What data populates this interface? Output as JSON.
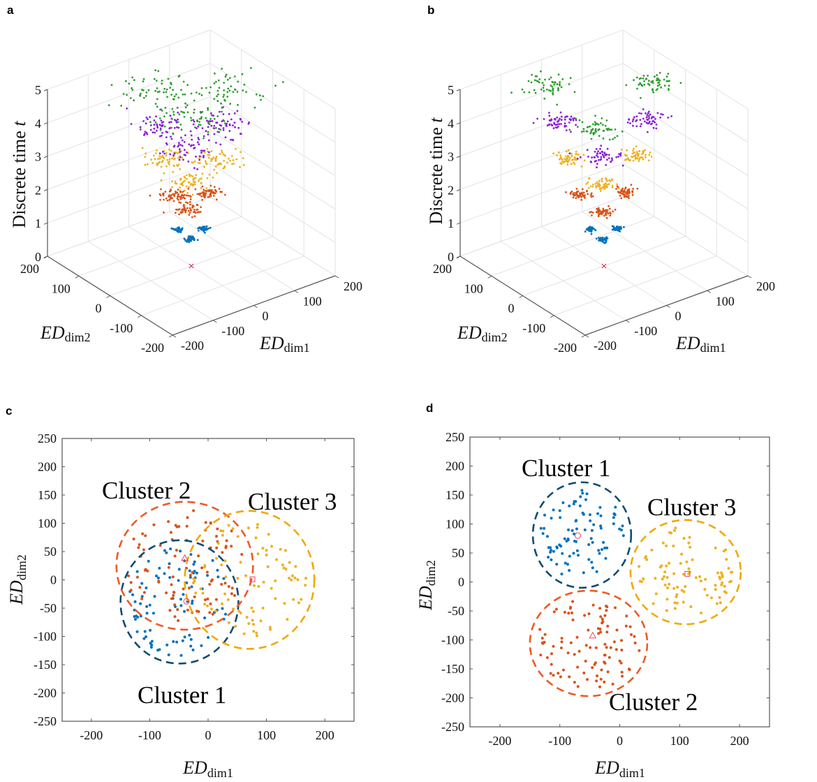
{
  "panel_labels": [
    "a",
    "b",
    "c",
    "d"
  ],
  "chart_data": [
    {
      "panel": "a",
      "type": "scatter3d",
      "xlabel": "ED",
      "xlabel_sub": "dim1",
      "ylabel": "ED",
      "ylabel_sub": "dim2",
      "zlabel": "Discrete time ",
      "zlabel_var": "t",
      "xlim": [
        -200,
        200
      ],
      "ylim": [
        -200,
        200
      ],
      "zlim": [
        0,
        5
      ],
      "xticks": [
        -200,
        -100,
        0,
        100,
        200
      ],
      "yticks": [
        -200,
        -100,
        0,
        100,
        200
      ],
      "zticks": [
        0,
        1,
        2,
        3,
        4,
        5
      ],
      "grid": true,
      "origin_marker": {
        "x": 0,
        "y": 0,
        "t": 0,
        "symbol": "x",
        "color": "#D7263D"
      },
      "layers": [
        {
          "t": 1,
          "color": "#0072BD",
          "spread": 5,
          "points_per_cluster": 40,
          "centers": [
            [
              -13,
              25
            ],
            [
              28,
              -2
            ],
            [
              -19,
              -21
            ]
          ]
        },
        {
          "t": 2,
          "color": "#D95319",
          "spread": 14,
          "points_per_cluster": 60,
          "centers": [
            [
              -18,
              36
            ],
            [
              40,
              -2
            ],
            [
              -27,
              -30
            ]
          ]
        },
        {
          "t": 3,
          "color": "#EDB120",
          "spread": 22,
          "points_per_cluster": 60,
          "centers": [
            [
              -25,
              49
            ],
            [
              55,
              -3
            ],
            [
              -37,
              -41
            ]
          ]
        },
        {
          "t": 4,
          "color": "#8A1FD6",
          "spread": 30,
          "points_per_cluster": 60,
          "centers": [
            [
              -29,
              58
            ],
            [
              65,
              -4
            ],
            [
              -44,
              -48
            ]
          ]
        },
        {
          "t": 5,
          "color": "#2E9E2E",
          "spread": 40,
          "points_per_cluster": 60,
          "centers": [
            [
              -36,
              71
            ],
            [
              80,
              -5
            ],
            [
              -54,
              -59
            ]
          ]
        }
      ]
    },
    {
      "panel": "b",
      "type": "scatter3d",
      "xlabel": "ED",
      "xlabel_sub": "dim1",
      "ylabel": "ED",
      "ylabel_sub": "dim2",
      "zlabel": "Discrete time ",
      "zlabel_var": "t",
      "xlim": [
        -200,
        200
      ],
      "ylim": [
        -200,
        200
      ],
      "zlim": [
        0,
        5
      ],
      "xticks": [
        -200,
        -100,
        0,
        100,
        200
      ],
      "yticks": [
        -200,
        -100,
        0,
        100,
        200
      ],
      "zticks": [
        0,
        1,
        2,
        3,
        4,
        5
      ],
      "grid": true,
      "origin_marker": {
        "x": 0,
        "y": 0,
        "t": 0,
        "symbol": "x",
        "color": "#D7263D"
      },
      "layers": [
        {
          "t": 1,
          "color": "#0072BD",
          "spread": 5,
          "points_per_cluster": 40,
          "centers": [
            [
              -14,
              27
            ],
            [
              30,
              -2
            ],
            [
              -20,
              -22
            ]
          ]
        },
        {
          "t": 2,
          "color": "#D95319",
          "spread": 10,
          "points_per_cluster": 55,
          "centers": [
            [
              -23,
              46
            ],
            [
              52,
              -3
            ],
            [
              -35,
              -38
            ]
          ]
        },
        {
          "t": 3,
          "color": "#EDB120",
          "spread": 14,
          "points_per_cluster": 55,
          "centers": [
            [
              -34,
              67
            ],
            [
              75,
              -5
            ],
            [
              -50,
              -56
            ]
          ]
        },
        {
          "t": 4,
          "color": "#8A1FD6",
          "spread": 18,
          "points_per_cluster": 55,
          "centers": [
            [
              -44,
              87
            ],
            [
              98,
              -6
            ],
            [
              -66,
              -73
            ]
          ]
        },
        {
          "t": 5,
          "color": "#2E9E2E",
          "spread": 22,
          "points_per_cluster": 55,
          "centers": [
            [
              -54,
              107
            ],
            [
              120,
              -7
            ],
            [
              -80,
              -89
            ]
          ]
        }
      ]
    },
    {
      "panel": "c",
      "type": "scatter",
      "xlabel": "ED",
      "xlabel_sub": "dim1",
      "ylabel": "ED",
      "ylabel_sub": "dim2",
      "xlim": [
        -250,
        250
      ],
      "ylim": [
        -250,
        250
      ],
      "xticks": [
        -200,
        -100,
        0,
        100,
        200
      ],
      "yticks": [
        -250,
        -200,
        -150,
        -100,
        -50,
        0,
        50,
        100,
        150,
        200,
        250
      ],
      "clusters": [
        {
          "label": "Cluster 1",
          "color": "#0072BD",
          "ellipse_color": "#0E4C70",
          "ellipse": {
            "cx": -49,
            "cy": -39,
            "rx": 101,
            "ry": 109
          },
          "centroid": {
            "x": -37,
            "y": -38,
            "symbol": "circle"
          },
          "points": 90
        },
        {
          "label": "Cluster 2",
          "color": "#D95319",
          "ellipse_color": "#EE5A24",
          "ellipse": {
            "cx": -40,
            "cy": 25,
            "rx": 117,
            "ry": 113
          },
          "centroid": {
            "x": -40,
            "y": 38,
            "symbol": "triangle"
          },
          "points": 90
        },
        {
          "label": "Cluster 3",
          "color": "#EDB120",
          "ellipse_color": "#F0A800",
          "ellipse": {
            "cx": 71,
            "cy": 0,
            "rx": 111,
            "ry": 122
          },
          "centroid": {
            "x": 76,
            "y": 1,
            "symbol": "square"
          },
          "points": 85
        }
      ],
      "centroid_color": "#F0405A"
    },
    {
      "panel": "d",
      "type": "scatter",
      "xlabel": "ED",
      "xlabel_sub": "dim1",
      "ylabel": "ED",
      "ylabel_sub": "dim2",
      "xlim": [
        -250,
        250
      ],
      "ylim": [
        -250,
        250
      ],
      "xticks": [
        -200,
        -100,
        0,
        100,
        200
      ],
      "yticks": [
        -250,
        -200,
        -150,
        -100,
        -50,
        0,
        50,
        100,
        150,
        200,
        250
      ],
      "clusters": [
        {
          "label": "Cluster 1",
          "color": "#0072BD",
          "ellipse_color": "#0E4C70",
          "ellipse": {
            "cx": -63,
            "cy": 81,
            "rx": 82,
            "ry": 91
          },
          "centroid": {
            "x": -70,
            "y": 80,
            "symbol": "circle"
          },
          "points": 90
        },
        {
          "label": "Cluster 2",
          "color": "#D95319",
          "ellipse_color": "#EE5A24",
          "ellipse": {
            "cx": -52,
            "cy": -106,
            "rx": 98,
            "ry": 91
          },
          "centroid": {
            "x": -45,
            "y": -93,
            "symbol": "triangle"
          },
          "points": 100
        },
        {
          "label": "Cluster 3",
          "color": "#EDB120",
          "ellipse_color": "#F0A800",
          "ellipse": {
            "cx": 110,
            "cy": 17,
            "rx": 92,
            "ry": 90
          },
          "centroid": {
            "x": 113,
            "y": 14,
            "symbol": "square"
          },
          "points": 90
        }
      ],
      "centroid_color": "#F0405A"
    }
  ]
}
